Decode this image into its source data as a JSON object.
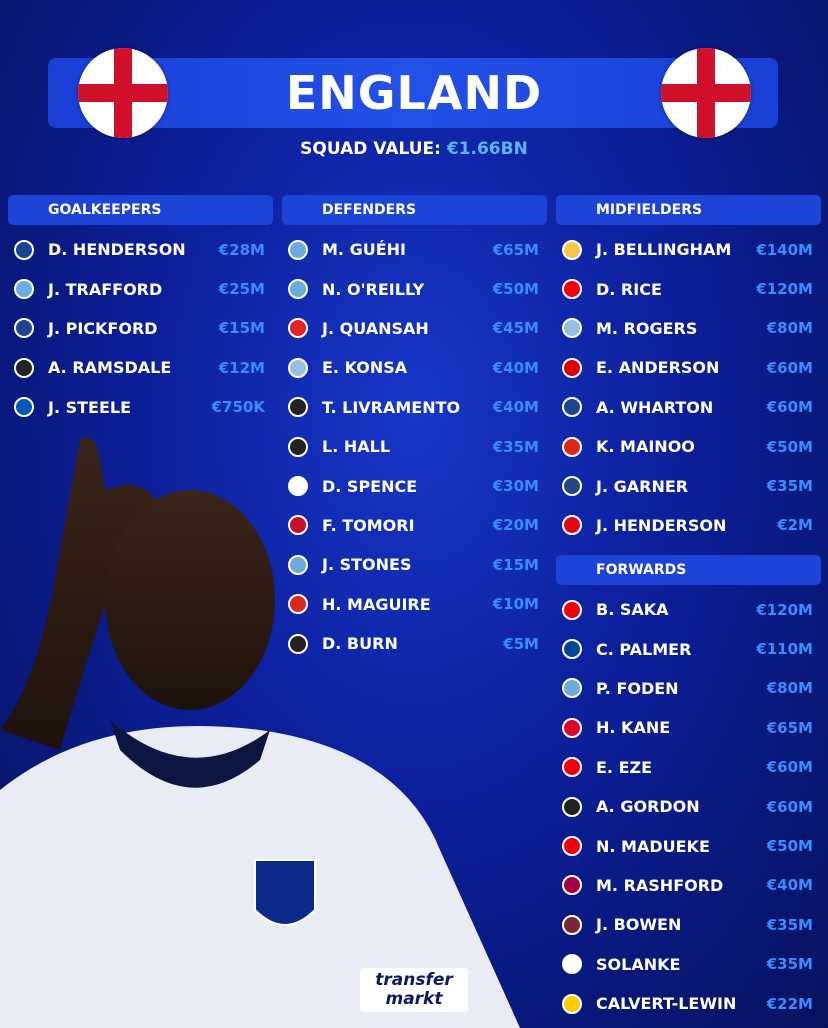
{
  "header": {
    "title": "ENGLAND",
    "squad_value_label": "SQUAD VALUE:",
    "squad_value": "€1.66BN"
  },
  "club_colors": {
    "palace": "#1b458f",
    "city": "#6cabdd",
    "everton": "#274488",
    "newcastle": "#222222",
    "brighton": "#0057b8",
    "leverkusen": "#e32221",
    "villa": "#95bfe5",
    "spurs": "#ffffff",
    "milan": "#c8102e",
    "united": "#da291c",
    "madrid": "#f3c94a",
    "arsenal": "#ef0107",
    "forest": "#dd0000",
    "brentford": "#e30613",
    "chelsea": "#034694",
    "bayern": "#dc052d",
    "barcelona": "#a50044",
    "westham": "#7a263a",
    "leeds": "#ffcd00"
  },
  "sections": [
    {
      "title": "GOALKEEPERS",
      "players": [
        [
          "D. HENDERSON",
          "€28M",
          "palace"
        ],
        [
          "J. TRAFFORD",
          "€25M",
          "city"
        ],
        [
          "J. PICKFORD",
          "€15M",
          "everton"
        ],
        [
          "A. RAMSDALE",
          "€12M",
          "newcastle"
        ],
        [
          "J. STEELE",
          "€750K",
          "brighton"
        ]
      ]
    },
    {
      "title": "DEFENDERS",
      "players": [
        [
          "M. GUÉHI",
          "€65M",
          "city"
        ],
        [
          "N. O'REILLY",
          "€50M",
          "city"
        ],
        [
          "J. QUANSAH",
          "€45M",
          "leverkusen"
        ],
        [
          "E. KONSA",
          "€40M",
          "villa"
        ],
        [
          "T. LIVRAMENTO",
          "€40M",
          "newcastle"
        ],
        [
          "L. HALL",
          "€35M",
          "newcastle"
        ],
        [
          "D. SPENCE",
          "€30M",
          "spurs"
        ],
        [
          "F. TOMORI",
          "€20M",
          "milan"
        ],
        [
          "J. STONES",
          "€15M",
          "city"
        ],
        [
          "H. MAGUIRE",
          "€10M",
          "united"
        ],
        [
          "D. BURN",
          "€5M",
          "newcastle"
        ]
      ]
    },
    {
      "title": "MIDFIELDERS",
      "players": [
        [
          "J. BELLINGHAM",
          "€140M",
          "madrid"
        ],
        [
          "D. RICE",
          "€120M",
          "arsenal"
        ],
        [
          "M. ROGERS",
          "€80M",
          "villa"
        ],
        [
          "E. ANDERSON",
          "€60M",
          "forest"
        ],
        [
          "A. WHARTON",
          "€60M",
          "palace"
        ],
        [
          "K. MAINOO",
          "€50M",
          "united"
        ],
        [
          "J. GARNER",
          "€35M",
          "everton"
        ],
        [
          "J. HENDERSON",
          "€2M",
          "brentford"
        ]
      ]
    },
    {
      "title": "FORWARDS",
      "players": [
        [
          "B. SAKA",
          "€120M",
          "arsenal"
        ],
        [
          "C. PALMER",
          "€110M",
          "chelsea"
        ],
        [
          "P. FODEN",
          "€80M",
          "city"
        ],
        [
          "H. KANE",
          "€65M",
          "bayern"
        ],
        [
          "E. EZE",
          "€60M",
          "arsenal"
        ],
        [
          "A. GORDON",
          "€60M",
          "newcastle"
        ],
        [
          "N. MADUEKE",
          "€50M",
          "arsenal"
        ],
        [
          "M. RASHFORD",
          "€40M",
          "barcelona"
        ],
        [
          "J. BOWEN",
          "€35M",
          "westham"
        ],
        [
          "SOLANKE",
          "€35M",
          "spurs"
        ],
        [
          "CALVERT-LEWIN",
          "€22M",
          "leeds"
        ]
      ]
    }
  ],
  "logo": {
    "line1": "transfer",
    "line2": "markt"
  }
}
